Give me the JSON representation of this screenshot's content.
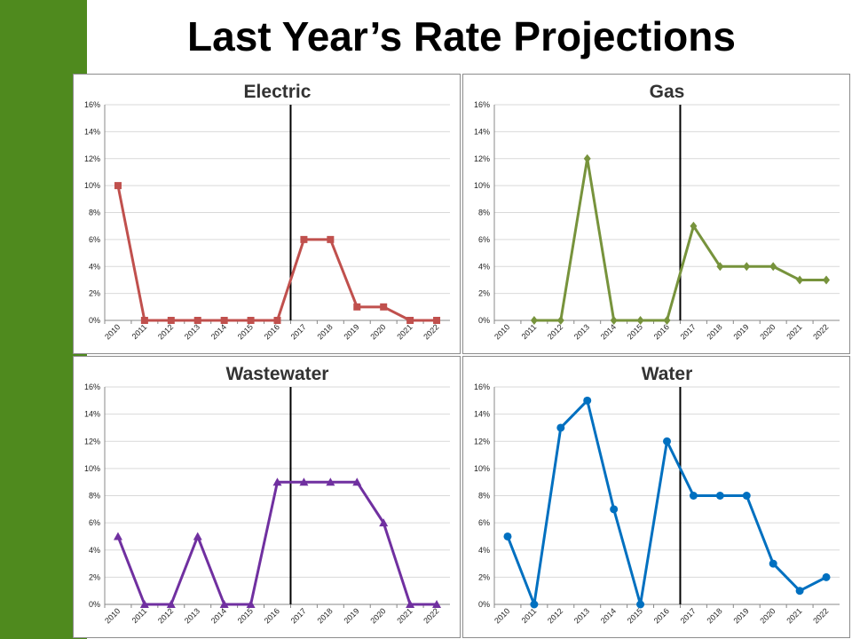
{
  "slide": {
    "title": "Last Year’s Rate Projections",
    "accent_color": "#4f8a1e"
  },
  "chart_data": [
    {
      "type": "line",
      "title": "Electric",
      "xlabel": "",
      "ylabel": "",
      "categories": [
        "2010",
        "2011",
        "2012",
        "2013",
        "2014",
        "2015",
        "2016",
        "2017",
        "2018",
        "2019",
        "2020",
        "2021",
        "2022"
      ],
      "values": [
        10,
        0,
        0,
        0,
        0,
        0,
        0,
        6,
        6,
        1,
        1,
        0,
        0
      ],
      "value_unit": "%",
      "ylim": [
        0,
        16
      ],
      "yticks": [
        "0%",
        "2%",
        "4%",
        "6%",
        "8%",
        "10%",
        "12%",
        "14%",
        "16%"
      ],
      "grid": true,
      "marker": "square",
      "color": "#c0504d",
      "divider_between": [
        "2016",
        "2017"
      ]
    },
    {
      "type": "line",
      "title": "Gas",
      "xlabel": "",
      "ylabel": "",
      "categories": [
        "2010",
        "2011",
        "2012",
        "2013",
        "2014",
        "2015",
        "2016",
        "2017",
        "2018",
        "2019",
        "2020",
        "2021",
        "2022"
      ],
      "values": [
        null,
        0,
        0,
        12,
        0,
        0,
        0,
        7,
        4,
        4,
        4,
        3,
        3
      ],
      "value_unit": "%",
      "ylim": [
        0,
        16
      ],
      "yticks": [
        "0%",
        "2%",
        "4%",
        "6%",
        "8%",
        "10%",
        "12%",
        "14%",
        "16%"
      ],
      "grid": true,
      "marker": "diamond",
      "color": "#77933c",
      "divider_between": [
        "2016",
        "2017"
      ]
    },
    {
      "type": "line",
      "title": "Wastewater",
      "xlabel": "",
      "ylabel": "",
      "categories": [
        "2010",
        "2011",
        "2012",
        "2013",
        "2014",
        "2015",
        "2016",
        "2017",
        "2018",
        "2019",
        "2020",
        "2021",
        "2022"
      ],
      "values": [
        5,
        0,
        0,
        5,
        0,
        0,
        9,
        9,
        9,
        9,
        6,
        0,
        0
      ],
      "value_unit": "%",
      "ylim": [
        0,
        16
      ],
      "yticks": [
        "0%",
        "2%",
        "4%",
        "6%",
        "8%",
        "10%",
        "12%",
        "14%",
        "16%"
      ],
      "grid": true,
      "marker": "triangle",
      "color": "#7030a0",
      "divider_between": [
        "2016",
        "2017"
      ]
    },
    {
      "type": "line",
      "title": "Water",
      "xlabel": "",
      "ylabel": "",
      "categories": [
        "2010",
        "2011",
        "2012",
        "2013",
        "2014",
        "2015",
        "2016",
        "2017",
        "2018",
        "2019",
        "2020",
        "2021",
        "2022"
      ],
      "values": [
        5,
        0,
        13,
        15,
        7,
        0,
        12,
        8,
        8,
        8,
        3,
        1,
        2
      ],
      "value_unit": "%",
      "ylim": [
        0,
        16
      ],
      "yticks": [
        "0%",
        "2%",
        "4%",
        "6%",
        "8%",
        "10%",
        "12%",
        "14%",
        "16%"
      ],
      "grid": true,
      "marker": "circle",
      "color": "#0070c0",
      "divider_between": [
        "2016",
        "2017"
      ]
    }
  ]
}
